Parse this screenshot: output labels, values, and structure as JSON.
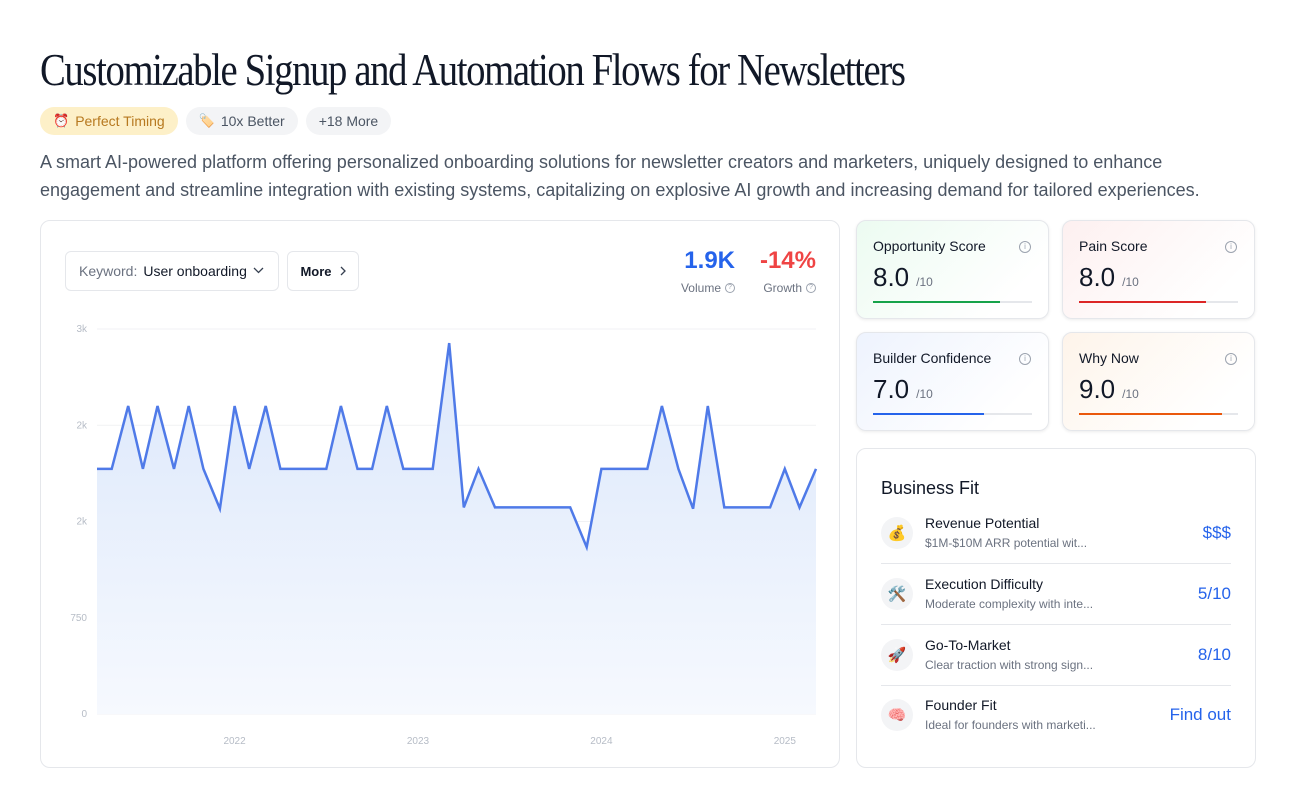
{
  "page": {
    "title": "Customizable Signup and Automation Flows for Newsletters",
    "tags": [
      {
        "icon": "alarm-clock-icon",
        "glyph": "⏰",
        "label": "Perfect Timing"
      },
      {
        "icon": "tag-icon",
        "glyph": "🏷️",
        "label": "10x Better"
      },
      {
        "label": "+18 More"
      }
    ],
    "description": "A smart AI-powered platform offering personalized onboarding solutions for newsletter creators and marketers, uniquely designed to enhance engagement and streamline integration with existing systems, capitalizing on explosive AI growth and increasing demand for tailored experiences."
  },
  "trend": {
    "keyword_label": "Keyword:",
    "keyword_value": "User onboarding",
    "more_label": "More",
    "volume": {
      "value": "1.9K",
      "label": "Volume",
      "color": "#2563eb"
    },
    "growth": {
      "value": "-14%",
      "label": "Growth",
      "color": "#ef4444"
    }
  },
  "chart_data": {
    "type": "area",
    "y_tick_labels": [
      "0",
      "750",
      "2k",
      "2k",
      "3k"
    ],
    "ylim": [
      0,
      3000
    ],
    "x_tick_labels": [
      "2022",
      "2023",
      "2024",
      "2025"
    ],
    "x_ticks": [
      2022.0,
      2023.0,
      2024.0,
      2025.0
    ],
    "xlim": [
      2021.25,
      2025.17
    ],
    "grid": true,
    "line_color": "#4f7ae8",
    "series": [
      {
        "x": [
          2021.25,
          2021.33,
          2021.42,
          2021.5,
          2021.58,
          2021.67,
          2021.75,
          2021.83,
          2021.92,
          2022.0,
          2022.08,
          2022.17,
          2022.25,
          2022.33,
          2022.42,
          2022.5,
          2022.58,
          2022.67,
          2022.75,
          2022.83,
          2022.92,
          2023.0,
          2023.08,
          2023.17,
          2023.25,
          2023.33,
          2023.42,
          2023.5,
          2023.58,
          2023.67,
          2023.75,
          2023.83,
          2023.92,
          2024.0,
          2024.08,
          2024.17,
          2024.25,
          2024.33,
          2024.42,
          2024.5,
          2024.58,
          2024.67,
          2024.75,
          2024.83,
          2024.92,
          2025.0,
          2025.08,
          2025.17
        ],
        "y": [
          1910,
          1910,
          2400,
          1910,
          2400,
          1910,
          2400,
          1910,
          1600,
          2400,
          1910,
          2400,
          1910,
          1910,
          1910,
          1910,
          2400,
          1910,
          1910,
          2400,
          1910,
          1910,
          1910,
          2890,
          1610,
          1910,
          1610,
          1610,
          1610,
          1610,
          1610,
          1610,
          1300,
          1910,
          1910,
          1910,
          1910,
          2400,
          1910,
          1600,
          2400,
          1610,
          1610,
          1610,
          1610,
          1910,
          1610,
          1910
        ]
      }
    ]
  },
  "scores": [
    {
      "name": "Opportunity Score",
      "value": "8.0",
      "max": "/10",
      "fraction": 0.8,
      "color": "#16a34a",
      "bg": "#ecfbf1"
    },
    {
      "name": "Pain Score",
      "value": "8.0",
      "max": "/10",
      "fraction": 0.8,
      "color": "#dc2626",
      "bg": "#fdf0f0"
    },
    {
      "name": "Builder Confidence",
      "value": "7.0",
      "max": "/10",
      "fraction": 0.7,
      "color": "#2563eb",
      "bg": "#eef3fe"
    },
    {
      "name": "Why Now",
      "value": "9.0",
      "max": "/10",
      "fraction": 0.9,
      "color": "#ea580c",
      "bg": "#fef4ea"
    }
  ],
  "business_fit": {
    "title": "Business Fit",
    "rows": [
      {
        "icon": "money-bag-icon",
        "glyph": "💰",
        "name": "Revenue Potential",
        "desc": "$1M-$10M ARR potential wit...",
        "value": "$$$"
      },
      {
        "icon": "tools-icon",
        "glyph": "🛠️",
        "name": "Execution Difficulty",
        "desc": "Moderate complexity with inte...",
        "value": "5/10"
      },
      {
        "icon": "rocket-icon",
        "glyph": "🚀",
        "name": "Go-To-Market",
        "desc": "Clear traction with strong sign...",
        "value": "8/10"
      },
      {
        "icon": "brain-icon",
        "glyph": "🧠",
        "name": "Founder Fit",
        "desc": "Ideal for founders with marketi...",
        "value": "Find out"
      }
    ]
  }
}
